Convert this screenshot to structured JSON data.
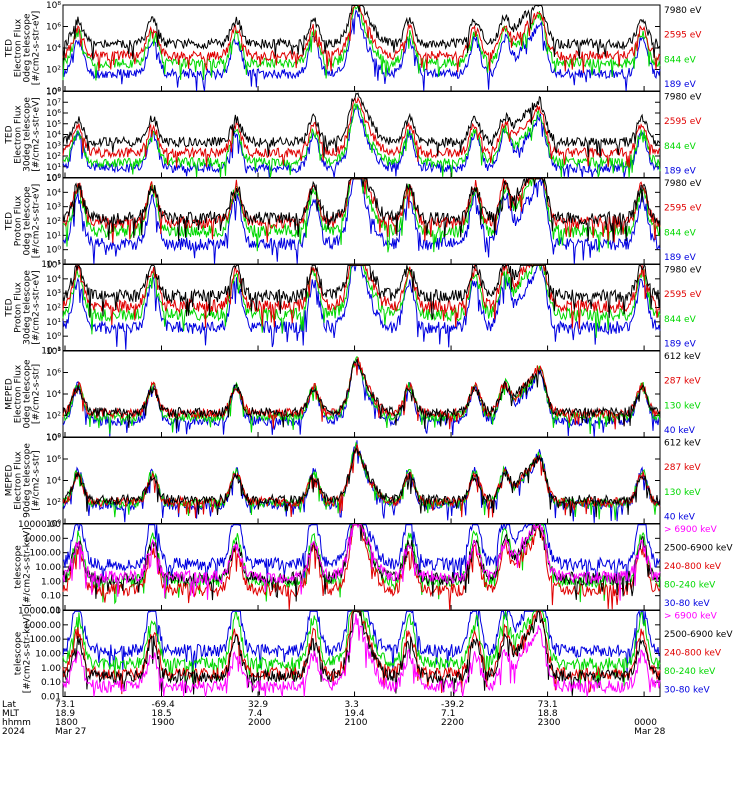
{
  "chart_data": {
    "type": "line",
    "x_axis": {
      "row_labels": [
        "Lat",
        "MLT",
        "hhmm",
        "2024"
      ],
      "columns": [
        {
          "lat": "73.1",
          "mlt": "18.9",
          "hhmm": "1800",
          "date": "Mar 27"
        },
        {
          "lat": "-69.4",
          "mlt": "18.5",
          "hhmm": "1900",
          "date": ""
        },
        {
          "lat": "32.9",
          "mlt": "7.4",
          "hhmm": "2000",
          "date": ""
        },
        {
          "lat": "3.3",
          "mlt": "19.4",
          "hhmm": "2100",
          "date": ""
        },
        {
          "lat": "-39.2",
          "mlt": "7.1",
          "hhmm": "2200",
          "date": ""
        },
        {
          "lat": "73.1",
          "mlt": "18.8",
          "hhmm": "2300",
          "date": ""
        },
        {
          "lat": "",
          "mlt": "",
          "hhmm": "0000",
          "date": "Mar 28"
        }
      ]
    },
    "panels": [
      {
        "ylabel": [
          "TED",
          "Electron Flux",
          "0deg telescope",
          "[#/cm2-s-str-eV]"
        ],
        "yticks": [
          "10⁸",
          "10⁶",
          "10⁴",
          "10²",
          "10⁰"
        ],
        "ylog": [
          0,
          8
        ],
        "legend": [
          {
            "label": "7980 eV",
            "color": "#000000"
          },
          {
            "label": "2595 eV",
            "color": "#e00000"
          },
          {
            "label": "844 eV",
            "color": "#00d800"
          },
          {
            "label": "189 eV",
            "color": "#0000e0"
          }
        ],
        "levels": [
          4.4,
          3.3,
          2.6,
          1.6
        ],
        "seed": 11
      },
      {
        "ylabel": [
          "TED",
          "Electron Flux",
          "30deg telescope",
          "[#/cm2-s-str-eV]"
        ],
        "yticks": [
          "10⁸",
          "10⁷",
          "10⁶",
          "10⁵",
          "10⁴",
          "10³",
          "10²",
          "10¹",
          "10⁰"
        ],
        "ylog": [
          0,
          8
        ],
        "legend": [
          {
            "label": "7980 eV",
            "color": "#000000"
          },
          {
            "label": "2595 eV",
            "color": "#e00000"
          },
          {
            "label": "844 eV",
            "color": "#00d800"
          },
          {
            "label": "189 eV",
            "color": "#0000e0"
          }
        ],
        "levels": [
          3.3,
          2.3,
          1.4,
          0.9
        ],
        "seed": 23
      },
      {
        "ylabel": [
          "TED",
          "Proton Flux",
          "0deg telescope",
          "[#/cm2-s-str-eV]"
        ],
        "yticks": [
          "10⁵",
          "10⁴",
          "10³",
          "10²",
          "10¹",
          "10⁰",
          "10⁻¹"
        ],
        "ylog": [
          -1,
          5
        ],
        "legend": [
          {
            "label": "7980 eV",
            "color": "#000000"
          },
          {
            "label": "2595 eV",
            "color": "#e00000"
          },
          {
            "label": "844 eV",
            "color": "#00d800"
          },
          {
            "label": "189 eV",
            "color": "#0000e0"
          }
        ],
        "levels": [
          2.2,
          1.9,
          1.3,
          0.4
        ],
        "seed": 37
      },
      {
        "ylabel": [
          "TED",
          "Proton Flux",
          "30deg telescope",
          "[#/cm2-s-str-eV]"
        ],
        "yticks": [
          "10⁵",
          "10⁴",
          "10³",
          "10²",
          "10¹",
          "10⁰",
          "10⁻¹"
        ],
        "ylog": [
          -1,
          5
        ],
        "legend": [
          {
            "label": "7980 eV",
            "color": "#000000"
          },
          {
            "label": "2595 eV",
            "color": "#e00000"
          },
          {
            "label": "844 eV",
            "color": "#00d800"
          },
          {
            "label": "189 eV",
            "color": "#0000e0"
          }
        ],
        "levels": [
          2.8,
          2.1,
          1.5,
          0.6
        ],
        "seed": 41
      },
      {
        "ylabel": [
          "MEPED",
          "Electron Flux",
          "0deg telescope",
          "[#/cm2-s-str]"
        ],
        "yticks": [
          "10⁸",
          "10⁶",
          "10⁴",
          "10²",
          "10⁰"
        ],
        "ylog": [
          0,
          8
        ],
        "legend": [
          {
            "label": "612 keV",
            "color": "#000000"
          },
          {
            "label": "287 keV",
            "color": "#e00000"
          },
          {
            "label": "130 keV",
            "color": "#00d800"
          },
          {
            "label": "40 keV",
            "color": "#0000e0"
          }
        ],
        "levels": [
          2.3,
          2.2,
          1.9,
          1.5
        ],
        "seed": 53
      },
      {
        "ylabel": [
          "MEPED",
          "Electron Flux",
          "90deg telescope",
          "[#/cm2-s-str]"
        ],
        "yticks": [
          "10⁸",
          "10⁶",
          "10⁴",
          "10²",
          "10⁰"
        ],
        "ylog": [
          0,
          8
        ],
        "legend": [
          {
            "label": "612 keV",
            "color": "#000000"
          },
          {
            "label": "287 keV",
            "color": "#e00000"
          },
          {
            "label": "130 keV",
            "color": "#00d800"
          },
          {
            "label": "40 keV",
            "color": "#0000e0"
          }
        ],
        "levels": [
          2.2,
          2.0,
          1.9,
          1.7
        ],
        "seed": 67
      },
      {
        "ylabel": [
          "",
          "",
          "telescope",
          "[#/cm2-s-str-keV]"
        ],
        "yticks": [
          "10000.00",
          "1000.00",
          "100.00",
          "10.00",
          "1.00",
          "0.10",
          "0.01"
        ],
        "ylog": [
          -2,
          4
        ],
        "legend": [
          {
            "label": "> 6900 keV",
            "color": "#ff00ff"
          },
          {
            "label": "2500-6900 keV",
            "color": "#000000"
          },
          {
            "label": "240-800 keV",
            "color": "#e00000"
          },
          {
            "label": "80-240 keV",
            "color": "#00d800"
          },
          {
            "label": "30-80 keV",
            "color": "#0000e0"
          }
        ],
        "levels": [
          0.3,
          0.2,
          -0.6,
          0.0,
          1.2
        ],
        "seed": 79
      },
      {
        "ylabel": [
          "",
          "",
          "telescope",
          "[#/cm2-s-str-keV]"
        ],
        "yticks": [
          "10000.00",
          "1000.00",
          "100.00",
          "10.00",
          "1.00",
          "0.10",
          "0.01"
        ],
        "ylog": [
          -2,
          4
        ],
        "legend": [
          {
            "label": "> 6900 keV",
            "color": "#ff00ff"
          },
          {
            "label": "2500-6900 keV",
            "color": "#000000"
          },
          {
            "label": "240-800 keV",
            "color": "#e00000"
          },
          {
            "label": "80-240 keV",
            "color": "#00d800"
          },
          {
            "label": "30-80 keV",
            "color": "#0000e0"
          }
        ],
        "levels": [
          -1.3,
          -0.6,
          -0.4,
          0.3,
          1.2
        ],
        "seed": 83
      }
    ]
  }
}
